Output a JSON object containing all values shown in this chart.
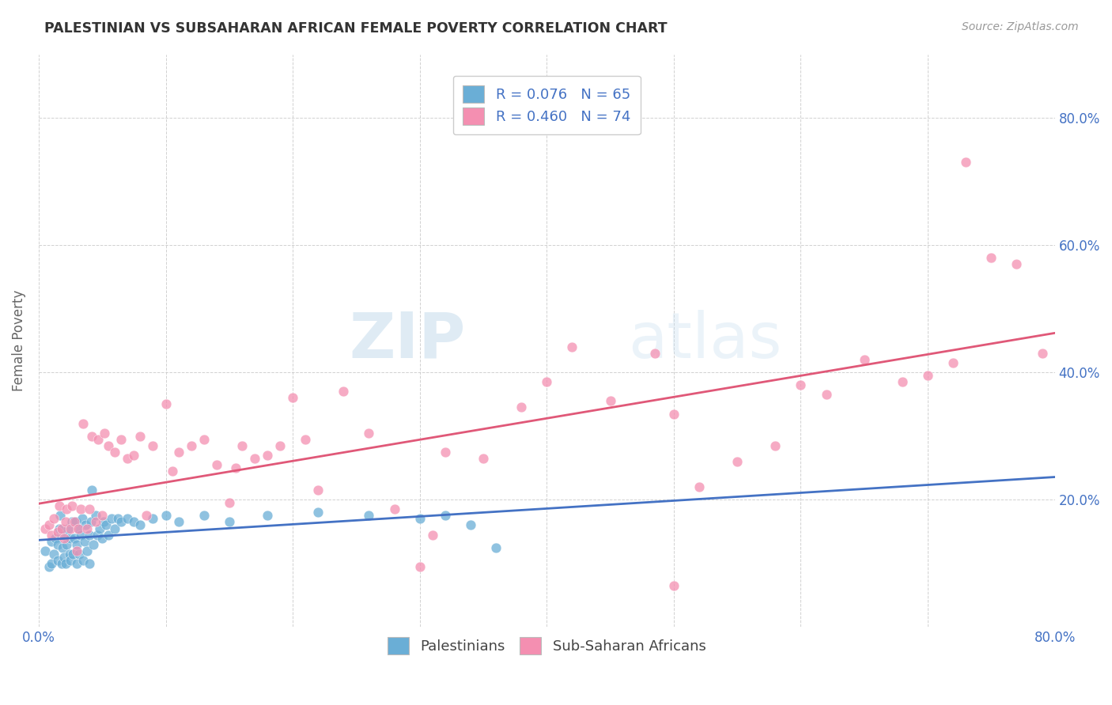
{
  "title": "PALESTINIAN VS SUBSAHARAN AFRICAN FEMALE POVERTY CORRELATION CHART",
  "source": "Source: ZipAtlas.com",
  "ylabel": "Female Poverty",
  "xlim": [
    0.0,
    0.8
  ],
  "ylim": [
    0.0,
    0.9
  ],
  "bottom_legend": [
    "Palestinians",
    "Sub-Saharan Africans"
  ],
  "blue_color": "#6aaed6",
  "pink_color": "#f48fb1",
  "blue_line_color": "#4472c4",
  "pink_line_color": "#e05878",
  "label_color": "#4472c4",
  "watermark_zip": "ZIP",
  "watermark_atlas": "atlas",
  "R_blue": 0.076,
  "N_blue": 65,
  "R_pink": 0.46,
  "N_pink": 74,
  "blue_scatter_x": [
    0.005,
    0.008,
    0.01,
    0.01,
    0.012,
    0.013,
    0.015,
    0.015,
    0.016,
    0.017,
    0.018,
    0.019,
    0.02,
    0.02,
    0.021,
    0.022,
    0.023,
    0.024,
    0.025,
    0.025,
    0.026,
    0.027,
    0.028,
    0.029,
    0.03,
    0.03,
    0.031,
    0.032,
    0.033,
    0.034,
    0.035,
    0.036,
    0.037,
    0.038,
    0.04,
    0.04,
    0.041,
    0.042,
    0.043,
    0.045,
    0.046,
    0.048,
    0.05,
    0.051,
    0.053,
    0.055,
    0.057,
    0.06,
    0.062,
    0.065,
    0.07,
    0.075,
    0.08,
    0.09,
    0.1,
    0.11,
    0.13,
    0.15,
    0.18,
    0.22,
    0.26,
    0.3,
    0.32,
    0.34,
    0.36
  ],
  "blue_scatter_y": [
    0.12,
    0.095,
    0.1,
    0.135,
    0.115,
    0.14,
    0.105,
    0.13,
    0.155,
    0.175,
    0.1,
    0.125,
    0.11,
    0.145,
    0.1,
    0.13,
    0.155,
    0.115,
    0.105,
    0.14,
    0.165,
    0.115,
    0.14,
    0.165,
    0.1,
    0.13,
    0.155,
    0.115,
    0.145,
    0.17,
    0.105,
    0.135,
    0.16,
    0.12,
    0.1,
    0.145,
    0.165,
    0.215,
    0.13,
    0.175,
    0.145,
    0.155,
    0.14,
    0.165,
    0.16,
    0.145,
    0.17,
    0.155,
    0.17,
    0.165,
    0.17,
    0.165,
    0.16,
    0.17,
    0.175,
    0.165,
    0.175,
    0.165,
    0.175,
    0.18,
    0.175,
    0.17,
    0.175,
    0.16,
    0.125
  ],
  "pink_scatter_x": [
    0.005,
    0.008,
    0.01,
    0.012,
    0.015,
    0.016,
    0.018,
    0.02,
    0.021,
    0.022,
    0.025,
    0.026,
    0.028,
    0.03,
    0.031,
    0.033,
    0.035,
    0.038,
    0.04,
    0.042,
    0.045,
    0.047,
    0.05,
    0.052,
    0.055,
    0.06,
    0.065,
    0.07,
    0.075,
    0.08,
    0.085,
    0.09,
    0.1,
    0.105,
    0.11,
    0.12,
    0.13,
    0.14,
    0.15,
    0.155,
    0.16,
    0.17,
    0.18,
    0.19,
    0.2,
    0.21,
    0.22,
    0.24,
    0.26,
    0.28,
    0.3,
    0.31,
    0.32,
    0.35,
    0.38,
    0.4,
    0.42,
    0.45,
    0.5,
    0.52,
    0.55,
    0.58,
    0.6,
    0.62,
    0.65,
    0.68,
    0.7,
    0.72,
    0.73,
    0.75,
    0.77,
    0.485,
    0.5,
    0.79
  ],
  "pink_scatter_y": [
    0.155,
    0.16,
    0.145,
    0.17,
    0.15,
    0.19,
    0.155,
    0.14,
    0.165,
    0.185,
    0.155,
    0.19,
    0.165,
    0.12,
    0.155,
    0.185,
    0.32,
    0.155,
    0.185,
    0.3,
    0.165,
    0.295,
    0.175,
    0.305,
    0.285,
    0.275,
    0.295,
    0.265,
    0.27,
    0.3,
    0.175,
    0.285,
    0.35,
    0.245,
    0.275,
    0.285,
    0.295,
    0.255,
    0.195,
    0.25,
    0.285,
    0.265,
    0.27,
    0.285,
    0.36,
    0.295,
    0.215,
    0.37,
    0.305,
    0.185,
    0.095,
    0.145,
    0.275,
    0.265,
    0.345,
    0.385,
    0.44,
    0.355,
    0.335,
    0.22,
    0.26,
    0.285,
    0.38,
    0.365,
    0.42,
    0.385,
    0.395,
    0.415,
    0.73,
    0.58,
    0.57,
    0.43,
    0.065,
    0.43
  ]
}
